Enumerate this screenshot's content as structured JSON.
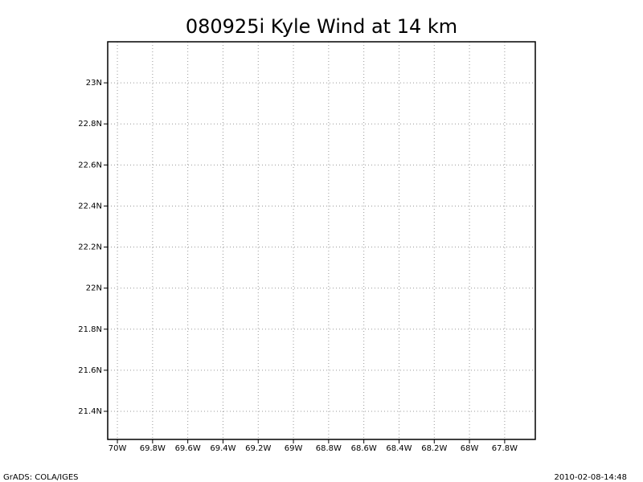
{
  "chart_data": {
    "type": "map",
    "title": "080925i Kyle Wind at 14 km",
    "xlim": [
      -70.055,
      -67.626
    ],
    "ylim": [
      21.263,
      23.2
    ],
    "xticks": [
      {
        "value": -70,
        "label": "70W"
      },
      {
        "value": -69.8,
        "label": "69.8W"
      },
      {
        "value": -69.6,
        "label": "69.6W"
      },
      {
        "value": -69.4,
        "label": "69.4W"
      },
      {
        "value": -69.2,
        "label": "69.2W"
      },
      {
        "value": -69,
        "label": "69W"
      },
      {
        "value": -68.8,
        "label": "68.8W"
      },
      {
        "value": -68.6,
        "label": "68.6W"
      },
      {
        "value": -68.4,
        "label": "68.4W"
      },
      {
        "value": -68.2,
        "label": "68.2W"
      },
      {
        "value": -68,
        "label": "68W"
      },
      {
        "value": -67.8,
        "label": "67.8W"
      }
    ],
    "yticks": [
      {
        "value": 21.4,
        "label": "21.4N"
      },
      {
        "value": 21.6,
        "label": "21.6N"
      },
      {
        "value": 21.8,
        "label": "21.8N"
      },
      {
        "value": 22,
        "label": "22N"
      },
      {
        "value": 22.2,
        "label": "22.2N"
      },
      {
        "value": 22.4,
        "label": "22.4N"
      },
      {
        "value": 22.6,
        "label": "22.6N"
      },
      {
        "value": 22.8,
        "label": "22.8N"
      },
      {
        "value": 23,
        "label": "23N"
      }
    ],
    "grid": true,
    "footer_left": "GrADS: COLA/IGES",
    "footer_right": "2010-02-08-14:48"
  }
}
